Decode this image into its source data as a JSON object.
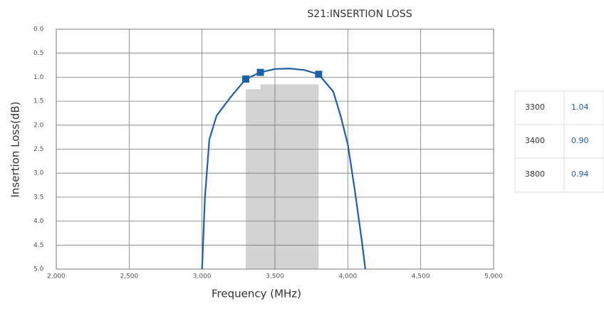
{
  "chart_data": {
    "type": "line",
    "title": "S21:INSERTION LOSS",
    "x_label": "Frequency (MHz)",
    "y_label": "Insertion Loss(dB)",
    "xlim": [
      2000,
      5000
    ],
    "ylim": [
      5.0,
      0.0
    ],
    "y_inverted": true,
    "grid": true,
    "xticks": [
      {
        "value": 2000,
        "label": "2,000"
      },
      {
        "value": 2500,
        "label": "2,500"
      },
      {
        "value": 3000,
        "label": "3,000"
      },
      {
        "value": 3500,
        "label": "3,500"
      },
      {
        "value": 4000,
        "label": "4,000"
      },
      {
        "value": 4500,
        "label": "4,500"
      },
      {
        "value": 5000,
        "label": "5,000"
      }
    ],
    "yticks": [
      {
        "value": 0,
        "label": "0.0"
      },
      {
        "value": 0.5,
        "label": "0.5"
      },
      {
        "value": 1,
        "label": "1.0"
      },
      {
        "value": 1.5,
        "label": "1.5"
      },
      {
        "value": 2,
        "label": "2.0"
      },
      {
        "value": 2.5,
        "label": "2.5"
      },
      {
        "value": 3,
        "label": "3.0"
      },
      {
        "value": 3.5,
        "label": "3.5"
      },
      {
        "value": 4,
        "label": "4.0"
      },
      {
        "value": 4.5,
        "label": "4.5"
      },
      {
        "value": 5,
        "label": "5.0"
      }
    ],
    "series": [
      {
        "color": "#1f5fa6",
        "x": [
          3000,
          3020,
          3050,
          3100,
          3200,
          3300,
          3400,
          3500,
          3600,
          3700,
          3800,
          3900,
          3950,
          4000,
          4050,
          4100,
          4120
        ],
        "values": [
          5.0,
          3.5,
          2.3,
          1.8,
          1.4,
          1.04,
          0.9,
          0.83,
          0.82,
          0.85,
          0.94,
          1.3,
          1.8,
          2.4,
          3.4,
          4.5,
          5.0
        ]
      }
    ],
    "markers": {
      "color": "#1f5fa6",
      "x": [
        3300,
        3400,
        3800
      ],
      "values": [
        1.04,
        0.9,
        0.94
      ]
    },
    "spec_mask": {
      "color": "#d3d3d3",
      "segments": [
        {
          "x": [
            3300,
            3400
          ],
          "value": 1.25
        },
        {
          "x": [
            3400,
            3800
          ],
          "value": 1.15
        }
      ]
    }
  },
  "table": {
    "rows": [
      [
        "3300",
        "1.04"
      ],
      [
        "3400",
        "0.90"
      ],
      [
        "3800",
        "0.94"
      ]
    ]
  }
}
